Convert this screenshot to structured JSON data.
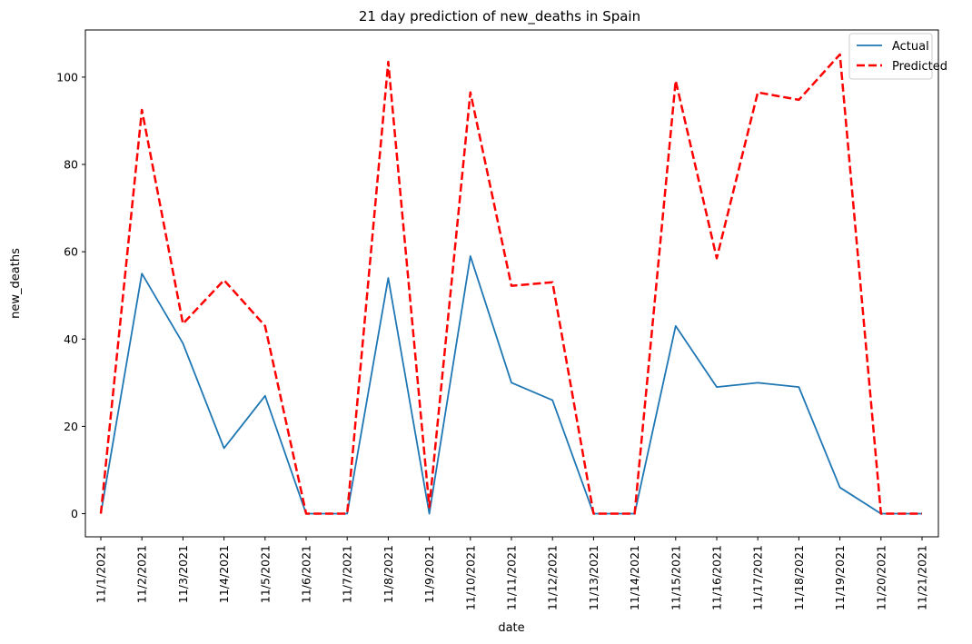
{
  "chart_data": {
    "type": "line",
    "title": "21 day prediction of new_deaths in Spain",
    "xlabel": "date",
    "ylabel": "new_deaths",
    "ylim": [
      -5.3,
      110.8
    ],
    "yticks": [
      0,
      20,
      40,
      60,
      80,
      100
    ],
    "grid": false,
    "legend_position": "top-right",
    "categories": [
      "11/1/2021",
      "11/2/2021",
      "11/3/2021",
      "11/4/2021",
      "11/5/2021",
      "11/6/2021",
      "11/7/2021",
      "11/8/2021",
      "11/9/2021",
      "11/10/2021",
      "11/11/2021",
      "11/12/2021",
      "11/13/2021",
      "11/14/2021",
      "11/15/2021",
      "11/16/2021",
      "11/17/2021",
      "11/18/2021",
      "11/19/2021",
      "11/20/2021",
      "11/21/2021"
    ],
    "series": [
      {
        "name": "Actual",
        "color": "#1f77b4",
        "style": "solid",
        "values": [
          0,
          55,
          39,
          15,
          27,
          0,
          0,
          54,
          0,
          59,
          30,
          26,
          0,
          0,
          43,
          29,
          30,
          29,
          6,
          0,
          0
        ]
      },
      {
        "name": "Predicted",
        "color": "#ff0000",
        "style": "dashed",
        "values": [
          0,
          92.5,
          43.5,
          53.5,
          43,
          0,
          0,
          103.5,
          1.5,
          96.5,
          52.2,
          53,
          0,
          0,
          99.2,
          58.5,
          96.5,
          94.8,
          105.2,
          0,
          0
        ]
      }
    ]
  }
}
